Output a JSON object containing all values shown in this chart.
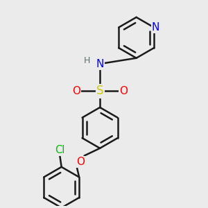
{
  "bg_color": "#ebebeb",
  "bond_color": "#1a1a1a",
  "bond_width": 1.8,
  "atom_colors": {
    "N": "#0000ff",
    "O": "#ff0000",
    "S": "#cccc00",
    "Cl": "#00bb00",
    "H": "#607070",
    "C": "#1a1a1a"
  },
  "font_size": 10,
  "fig_size": [
    3.0,
    3.0
  ],
  "dpi": 100,
  "xlim": [
    -2.0,
    2.8
  ],
  "ylim": [
    -3.8,
    2.2
  ]
}
